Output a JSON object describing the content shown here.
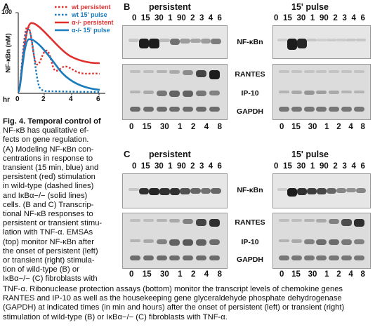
{
  "panelA": {
    "letter": "A",
    "y_label": "NF-κBn (nM)",
    "x_label": "hr",
    "x_ticks": [
      "0",
      "2",
      "4",
      "6"
    ],
    "y_tick": "100",
    "legend": [
      {
        "label": "wt persistent",
        "color": "#e0302e",
        "style": "dotted"
      },
      {
        "label": "wt 15' pulse",
        "color": "#1a7bbd",
        "style": "dotted"
      },
      {
        "label": "α-/- persistent",
        "color": "#e0302e",
        "style": "solid"
      },
      {
        "label": "α-/- 15' pulse",
        "color": "#1a7bbd",
        "style": "solid"
      }
    ]
  },
  "panelB": {
    "letter": "B",
    "title_left": "persistent",
    "title_right": "15' pulse",
    "time_top": [
      "0",
      "15",
      "30",
      "1",
      "90",
      "2",
      "3",
      "4",
      "6"
    ],
    "time_bottom": [
      "0",
      "15",
      "30",
      "1",
      "2",
      "4",
      "8"
    ],
    "label_emsa": "NF-κBn",
    "label_rantes": "RANTES",
    "label_ip10": "IP-10",
    "label_gapdh": "GAPDH"
  },
  "panelC": {
    "letter": "C",
    "title_left": "persistent",
    "title_right": "15' pulse",
    "time_top": [
      "0",
      "15",
      "30",
      "1",
      "90",
      "2",
      "3",
      "4",
      "6"
    ],
    "time_bottom": [
      "0",
      "15",
      "30",
      "1",
      "2",
      "4",
      "8"
    ],
    "label_emsa": "NF-κBn",
    "label_rantes": "RANTES",
    "label_ip10": "IP-10",
    "label_gapdh": "GAPDH"
  },
  "caption": {
    "lines": [
      "Fig. 4. Temporal control of",
      "NF-κB has qualitative ef-",
      "fects on gene regulation.",
      "(A) Modeling NF-κBn con-",
      "centrations in response to",
      "transient (15 min, blue) and",
      "persistent (red) stimulation",
      "in wild-type (dashed lines)",
      "and IκBα−/− (solid lines)",
      "cells. (B and C) Transcrip-",
      "tional NF-κB responses to",
      "persistent or transient stimu-",
      "lation with TNF-α. EMSAs",
      "(top) monitor NF-κBn after",
      "the onset of persistent (left)",
      "or transient (right) stimula-",
      "tion of wild-type (B) or",
      "IκBα−/− (C) fibroblasts with"
    ],
    "full_lines": [
      "TNF-α. Ribonuclease protection assays (bottom) monitor the transcript levels of chemokine genes",
      "RANTES and IP-10 as well as the housekeeping gene glyceraldehyde phosphate dehydrogenase",
      "(GAPDH) at indicated times (in min and hours) after the onset of persistent (left) or transient (right)",
      "stimulation of wild-type (B) or IκBα−/− (C) fibroblasts with TNF-α."
    ]
  }
}
